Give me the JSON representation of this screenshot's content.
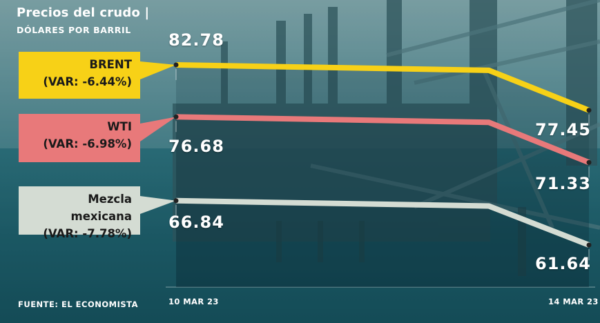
{
  "header": {
    "title": "Precios del crudo |",
    "subtitle": "DÓLARES POR BARRIL"
  },
  "footer": {
    "source": "FUENTE: EL ECONOMISTA"
  },
  "colors": {
    "brent": "#f7d117",
    "wti": "#e8797a",
    "mezcla": "#d4dcd3"
  },
  "chart_data": {
    "type": "line",
    "title": "Precios del crudo",
    "subtitle": "DÓLARES POR BARRIL",
    "x": [
      "10 MAR 23",
      "14 MAR 23"
    ],
    "series": [
      {
        "name": "BRENT",
        "variation": "(VAR: -6.44%)",
        "values": [
          82.78,
          77.45
        ],
        "labels": [
          "82.78",
          "77.45"
        ]
      },
      {
        "name": "WTI",
        "variation": "(VAR: -6.98%)",
        "values": [
          76.68,
          71.33
        ],
        "labels": [
          "76.68",
          "71.33"
        ]
      },
      {
        "name": "Mezcla mexicana",
        "variation": "(VAR: -7.78%)",
        "values": [
          66.84,
          61.64
        ],
        "labels": [
          "66.84",
          "61.64"
        ]
      }
    ],
    "grid": false,
    "legend": "left"
  }
}
